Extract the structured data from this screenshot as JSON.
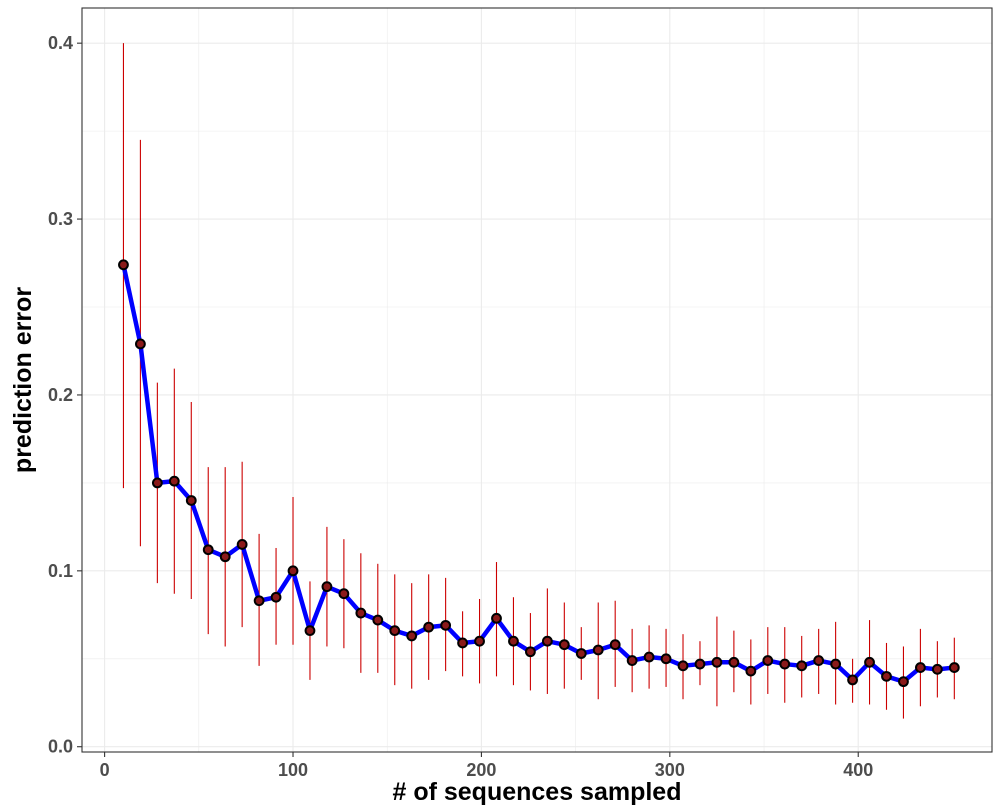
{
  "chart_data": {
    "type": "line",
    "title": "",
    "xlabel": "# of sequences sampled",
    "ylabel": "prediction error",
    "xlim": [
      -12,
      471
    ],
    "ylim": [
      -0.003,
      0.42
    ],
    "x_ticks": [
      0,
      100,
      200,
      300,
      400
    ],
    "y_ticks": [
      0.0,
      0.1,
      0.2,
      0.3,
      0.4
    ],
    "x_tick_labels": [
      "0",
      "100",
      "200",
      "300",
      "400"
    ],
    "y_tick_labels": [
      "0.0",
      "0.1",
      "0.2",
      "0.3",
      "0.4"
    ],
    "grid": true,
    "legend": "none",
    "colors": {
      "line": "#0000ff",
      "point": "#000000",
      "point_inner": "#8b1a1a",
      "errorbar": "#cc0000",
      "grid": "#ebebeb",
      "panel_border": "#333333"
    },
    "series": [
      {
        "x": [
          10,
          19,
          28,
          37,
          46,
          55,
          64,
          73,
          82,
          91,
          100,
          109,
          118,
          127,
          136,
          145,
          154,
          163,
          172,
          181,
          190,
          199,
          208,
          217,
          226,
          235,
          244,
          253,
          262,
          271,
          280,
          289,
          298,
          307,
          316,
          325,
          334,
          343,
          352,
          361,
          370,
          379,
          388,
          397,
          406,
          415,
          424,
          433,
          442,
          451
        ],
        "y": [
          0.274,
          0.229,
          0.15,
          0.151,
          0.14,
          0.112,
          0.108,
          0.115,
          0.083,
          0.085,
          0.1,
          0.066,
          0.091,
          0.087,
          0.076,
          0.072,
          0.066,
          0.063,
          0.068,
          0.069,
          0.059,
          0.06,
          0.073,
          0.06,
          0.054,
          0.06,
          0.058,
          0.053,
          0.055,
          0.058,
          0.049,
          0.051,
          0.05,
          0.046,
          0.047,
          0.048,
          0.048,
          0.043,
          0.049,
          0.047,
          0.046,
          0.049,
          0.047,
          0.038,
          0.048,
          0.04,
          0.037,
          0.045,
          0.044,
          0.045
        ],
        "ymin": [
          0.147,
          0.114,
          0.093,
          0.087,
          0.084,
          0.064,
          0.057,
          0.068,
          0.046,
          0.058,
          0.058,
          0.038,
          0.057,
          0.056,
          0.042,
          0.042,
          0.035,
          0.033,
          0.038,
          0.043,
          0.04,
          0.036,
          0.04,
          0.035,
          0.032,
          0.03,
          0.033,
          0.038,
          0.027,
          0.034,
          0.031,
          0.033,
          0.034,
          0.027,
          0.035,
          0.023,
          0.031,
          0.024,
          0.03,
          0.025,
          0.028,
          0.03,
          0.024,
          0.025,
          0.024,
          0.021,
          0.016,
          0.023,
          0.028,
          0.027
        ],
        "ymax": [
          0.4,
          0.345,
          0.207,
          0.215,
          0.196,
          0.159,
          0.159,
          0.162,
          0.121,
          0.113,
          0.142,
          0.094,
          0.125,
          0.118,
          0.11,
          0.104,
          0.098,
          0.093,
          0.098,
          0.096,
          0.077,
          0.084,
          0.105,
          0.085,
          0.076,
          0.09,
          0.082,
          0.068,
          0.082,
          0.083,
          0.067,
          0.069,
          0.067,
          0.064,
          0.06,
          0.074,
          0.066,
          0.061,
          0.068,
          0.068,
          0.063,
          0.067,
          0.071,
          0.05,
          0.072,
          0.059,
          0.057,
          0.067,
          0.06,
          0.062
        ]
      }
    ]
  }
}
